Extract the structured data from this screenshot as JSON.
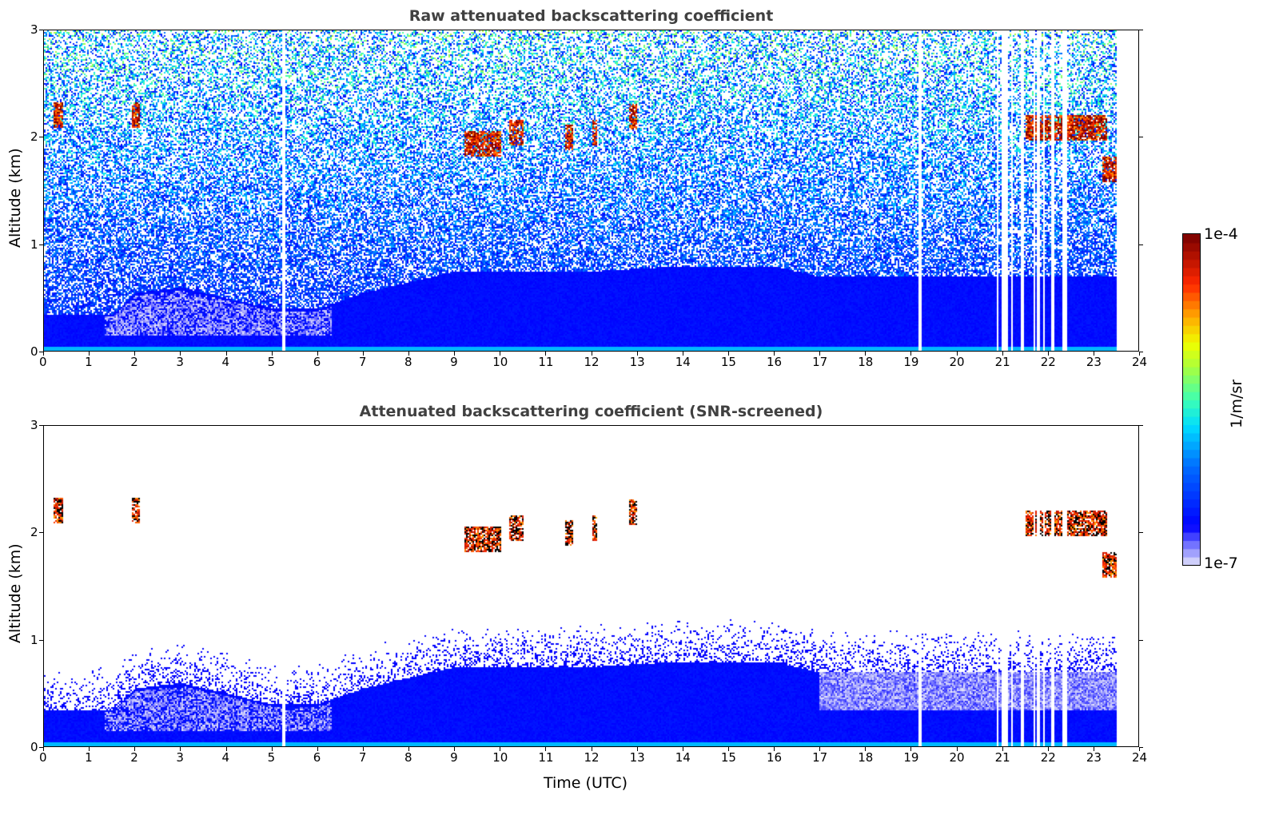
{
  "chart_data": [
    {
      "type": "heatmap",
      "title": "Raw attenuated backscattering coefficient",
      "xlabel": "",
      "ylabel": "Altitude (km)",
      "xlim": [
        0,
        24
      ],
      "ylim": [
        0,
        3
      ],
      "xticks": [
        0,
        1,
        2,
        3,
        4,
        5,
        6,
        7,
        8,
        9,
        10,
        11,
        12,
        13,
        14,
        15,
        16,
        17,
        18,
        19,
        20,
        21,
        22,
        23,
        24
      ],
      "yticks": [
        0,
        1,
        2,
        3
      ],
      "data_end_time": 23.5,
      "boundary_layer_top_km": {
        "t": [
          0,
          1.5,
          2,
          3,
          4,
          5,
          6,
          7,
          8,
          9,
          12,
          14,
          16,
          17,
          20,
          23.5
        ],
        "h": [
          0.35,
          0.35,
          0.55,
          0.6,
          0.5,
          0.4,
          0.4,
          0.55,
          0.65,
          0.75,
          0.75,
          0.8,
          0.8,
          0.7,
          0.7,
          0.7
        ]
      },
      "cloud_layers": [
        {
          "t": [
            0.2,
            0.4
          ],
          "h": 2.22
        },
        {
          "t": [
            1.9,
            2.1
          ],
          "h": 2.22
        },
        {
          "t": [
            9.2,
            10
          ],
          "h": 1.95
        },
        {
          "t": [
            10.2,
            10.5
          ],
          "h": 2.05
        },
        {
          "t": [
            11.4,
            11.6
          ],
          "h": 2.0
        },
        {
          "t": [
            12,
            12.1
          ],
          "h": 2.05
        },
        {
          "t": [
            12.8,
            13
          ],
          "h": 2.2
        },
        {
          "t": [
            21.5,
            23.3
          ],
          "h": 2.1
        },
        {
          "t": [
            23.2,
            23.5
          ],
          "h": 1.7
        }
      ],
      "missing_time_stripes": [
        5.25,
        19.2,
        20.9,
        21.05,
        21.45,
        21.8,
        22.1,
        22.35
      ]
    },
    {
      "type": "heatmap",
      "title": "Attenuated backscattering coefficient (SNR-screened)",
      "xlabel": "Time (UTC)",
      "ylabel": "Altitude (km)",
      "xlim": [
        0,
        24
      ],
      "ylim": [
        0,
        3
      ],
      "xticks": [
        0,
        1,
        2,
        3,
        4,
        5,
        6,
        7,
        8,
        9,
        10,
        11,
        12,
        13,
        14,
        15,
        16,
        17,
        18,
        19,
        20,
        21,
        22,
        23,
        24
      ],
      "yticks": [
        0,
        1,
        2,
        3
      ]
    }
  ],
  "colorbar": {
    "label": "1/m/sr",
    "min_label": "1e-7",
    "max_label": "1e-4",
    "min": 1e-07,
    "max": 0.0001,
    "scale": "log"
  }
}
